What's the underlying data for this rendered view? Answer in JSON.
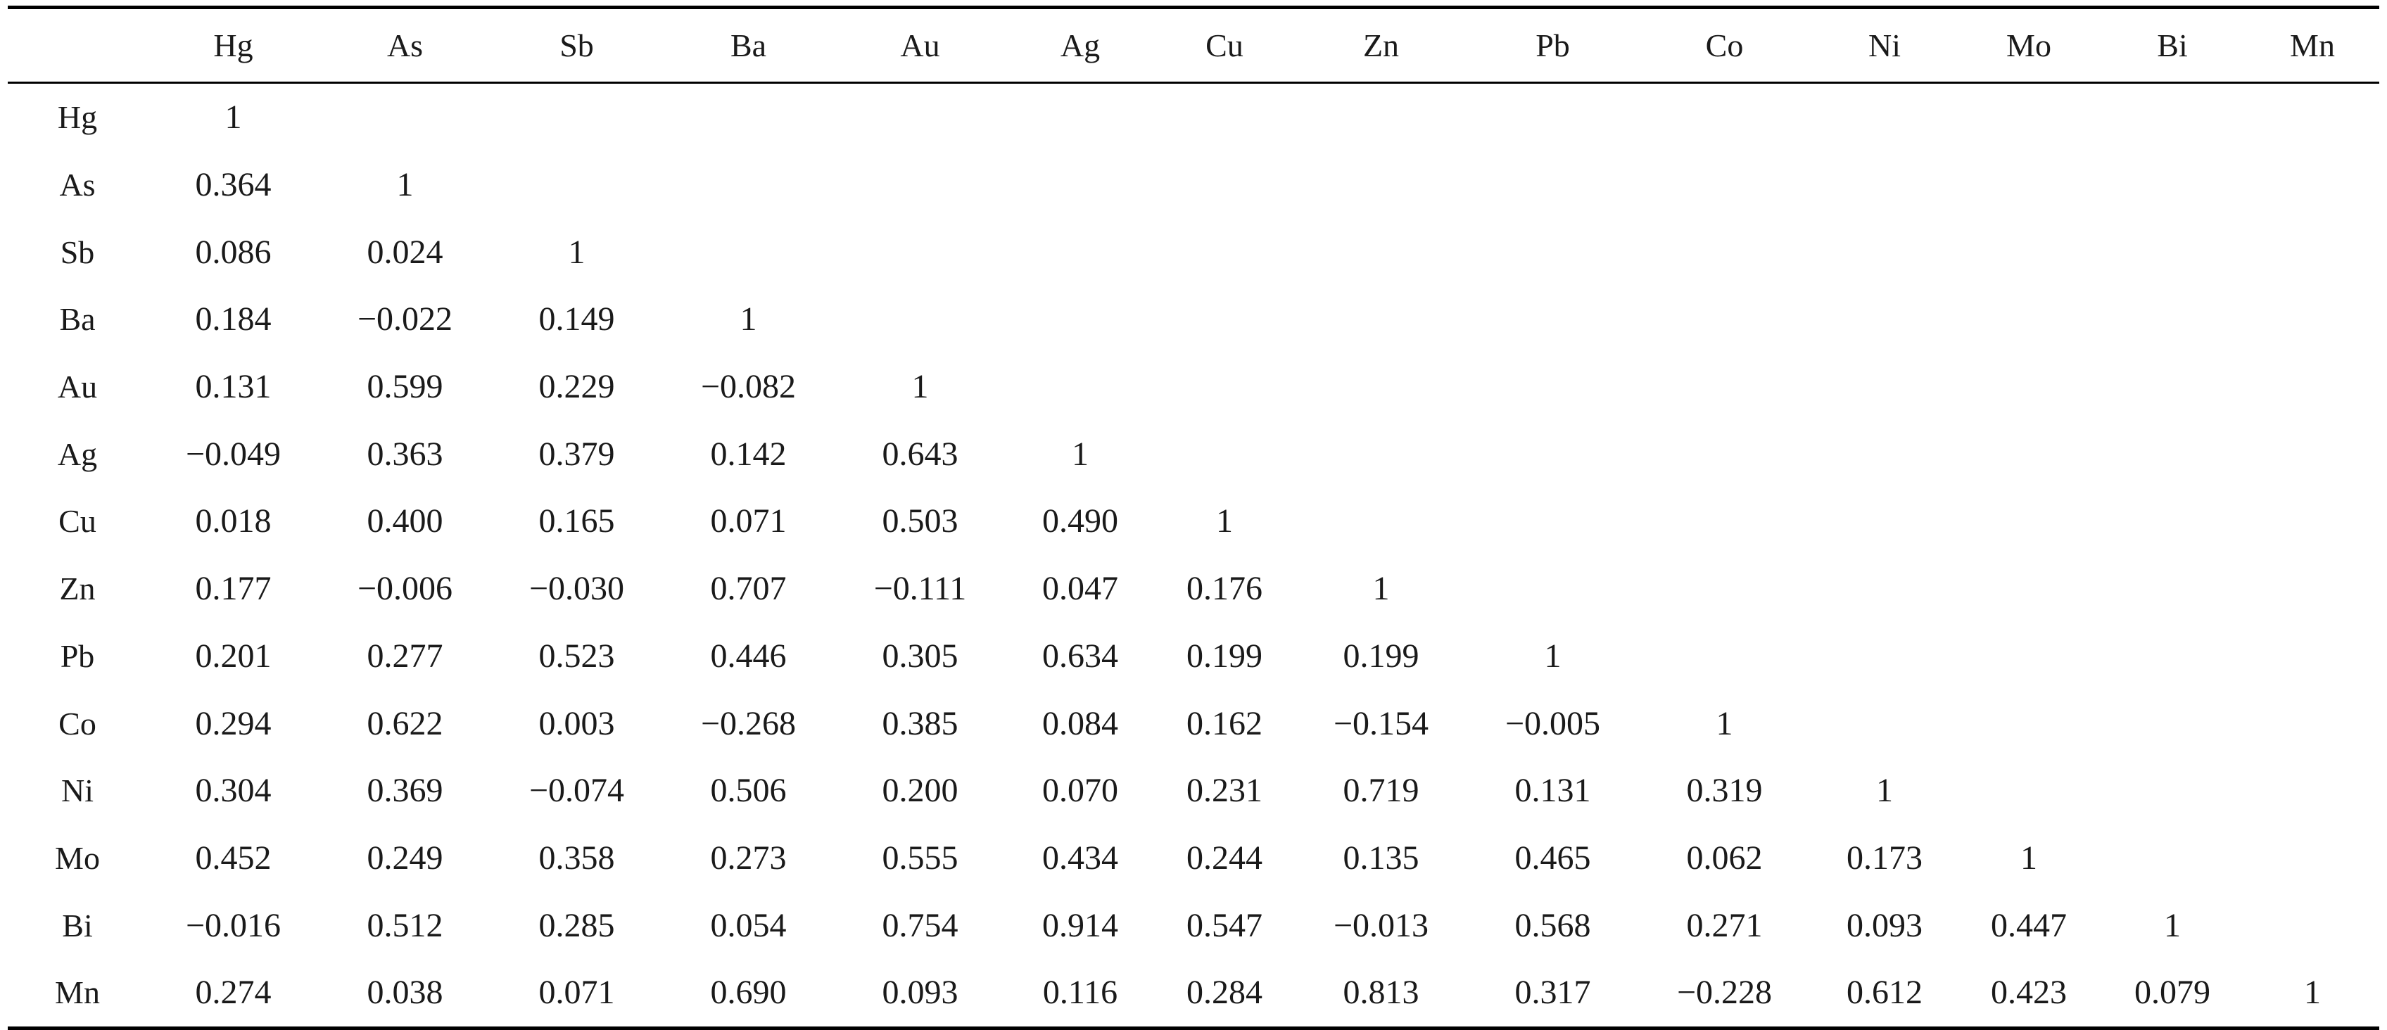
{
  "table": {
    "columns": [
      "",
      "Hg",
      "As",
      "Sb",
      "Ba",
      "Au",
      "Ag",
      "Cu",
      "Zn",
      "Pb",
      "Co",
      "Ni",
      "Mo",
      "Bi",
      "Mn"
    ],
    "rows": [
      {
        "label": "Hg",
        "cells": [
          "1"
        ]
      },
      {
        "label": "As",
        "cells": [
          "0.364",
          "1"
        ]
      },
      {
        "label": "Sb",
        "cells": [
          "0.086",
          "0.024",
          "1"
        ]
      },
      {
        "label": "Ba",
        "cells": [
          "0.184",
          "−0.022",
          "0.149",
          "1"
        ]
      },
      {
        "label": "Au",
        "cells": [
          "0.131",
          "0.599",
          "0.229",
          "−0.082",
          "1"
        ]
      },
      {
        "label": "Ag",
        "cells": [
          "−0.049",
          "0.363",
          "0.379",
          "0.142",
          "0.643",
          "1"
        ]
      },
      {
        "label": "Cu",
        "cells": [
          "0.018",
          "0.400",
          "0.165",
          "0.071",
          "0.503",
          "0.490",
          "1"
        ]
      },
      {
        "label": "Zn",
        "cells": [
          "0.177",
          "−0.006",
          "−0.030",
          "0.707",
          "−0.111",
          "0.047",
          "0.176",
          "1"
        ]
      },
      {
        "label": "Pb",
        "cells": [
          "0.201",
          "0.277",
          "0.523",
          "0.446",
          "0.305",
          "0.634",
          "0.199",
          "0.199",
          "1"
        ]
      },
      {
        "label": "Co",
        "cells": [
          "0.294",
          "0.622",
          "0.003",
          "−0.268",
          "0.385",
          "0.084",
          "0.162",
          "−0.154",
          "−0.005",
          "1"
        ]
      },
      {
        "label": "Ni",
        "cells": [
          "0.304",
          "0.369",
          "−0.074",
          "0.506",
          "0.200",
          "0.070",
          "0.231",
          "0.719",
          "0.131",
          "0.319",
          "1"
        ]
      },
      {
        "label": "Mo",
        "cells": [
          "0.452",
          "0.249",
          "0.358",
          "0.273",
          "0.555",
          "0.434",
          "0.244",
          "0.135",
          "0.465",
          "0.062",
          "0.173",
          "1"
        ]
      },
      {
        "label": "Bi",
        "cells": [
          "−0.016",
          "0.512",
          "0.285",
          "0.054",
          "0.754",
          "0.914",
          "0.547",
          "−0.013",
          "0.568",
          "0.271",
          "0.093",
          "0.447",
          "1"
        ]
      },
      {
        "label": "Mn",
        "cells": [
          "0.274",
          "0.038",
          "0.071",
          "0.690",
          "0.093",
          "0.116",
          "0.284",
          "0.813",
          "0.317",
          "−0.228",
          "0.612",
          "0.423",
          "0.079",
          "1"
        ]
      }
    ]
  }
}
